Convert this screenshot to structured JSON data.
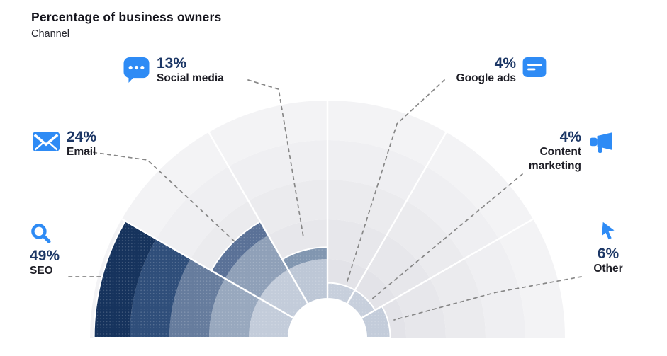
{
  "header": {
    "title": "Percentage of business owners",
    "subtitle": "Channel"
  },
  "chart_data": {
    "type": "bar",
    "variant": "radial-semicircle",
    "title": "Percentage of business owners",
    "subtitle": "Channel",
    "unit": "%",
    "rlim": [
      0,
      50
    ],
    "ring_interval": 10,
    "grid": true,
    "legend": "callout-labels-with-icons",
    "categories": [
      "SEO",
      "Email",
      "Social media",
      "Google ads",
      "Content marketing",
      "Other"
    ],
    "values": [
      49,
      24,
      13,
      4,
      4,
      6
    ],
    "items": [
      {
        "label": "SEO",
        "value": 49,
        "pct_label": "49%",
        "icon": "search-icon",
        "band_colors": [
          "#c3ccda",
          "#98a8be",
          "#667c9d",
          "#2f4e7a",
          "#16335d"
        ]
      },
      {
        "label": "Email",
        "value": 24,
        "pct_label": "24%",
        "icon": "envelope-icon",
        "band_colors": [
          "#c3ccda",
          "#8fa0b8",
          "#5a7197"
        ]
      },
      {
        "label": "Social media",
        "value": 13,
        "pct_label": "13%",
        "icon": "chat-bubble-icon",
        "band_colors": [
          "#bdc7d6",
          "#8196b0"
        ]
      },
      {
        "label": "Google ads",
        "value": 4,
        "pct_label": "4%",
        "icon": "ad-document-icon",
        "band_colors": [
          "#c7cfdc"
        ]
      },
      {
        "label": "Content marketing",
        "value": 4,
        "pct_label": "4%",
        "icon": "megaphone-icon",
        "band_colors": [
          "#c7cfdc"
        ]
      },
      {
        "label": "Other",
        "value": 6,
        "pct_label": "6%",
        "icon": "cursor-icon",
        "band_colors": [
          "#c3ccda"
        ]
      }
    ],
    "colors": {
      "accent_blue": "#2e8bf5",
      "pct_text": "#1c3766",
      "label_text": "#1e1e26",
      "leader_line": "#878787",
      "sector_divider": "#ffffff",
      "background_rings": [
        "#e3e3e8",
        "#e7e7eb",
        "#ebebee",
        "#efeff2",
        "#f3f3f5"
      ]
    }
  }
}
